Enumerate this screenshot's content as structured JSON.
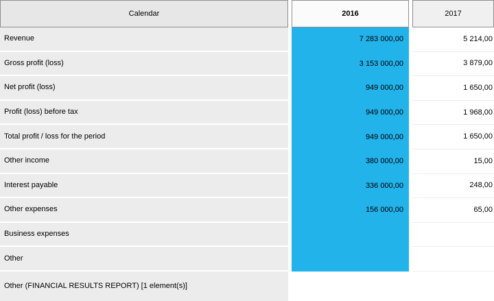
{
  "table": {
    "header": {
      "calendar": "Calendar",
      "col2016": "2016",
      "col2017": "2017"
    },
    "rows": [
      {
        "label": "Revenue",
        "v2016": "7 283 000,00",
        "v2017": "5 214,00"
      },
      {
        "label": "Gross profit (loss)",
        "v2016": "3 153 000,00",
        "v2017": "3 879,00"
      },
      {
        "label": "Net profit (loss)",
        "v2016": "949 000,00",
        "v2017": "1 650,00"
      },
      {
        "label": "Profit (loss) before tax",
        "v2016": "949 000,00",
        "v2017": "1 968,00"
      },
      {
        "label": "Total profit / loss for the period",
        "v2016": "949 000,00",
        "v2017": "1 650,00"
      },
      {
        "label": "Other income",
        "v2016": "380 000,00",
        "v2017": "15,00"
      },
      {
        "label": "Interest payable",
        "v2016": "336 000,00",
        "v2017": "248,00"
      },
      {
        "label": "Other expenses",
        "v2016": "156 000,00",
        "v2017": "65,00"
      },
      {
        "label": "Business expenses",
        "v2016": "",
        "v2017": ""
      },
      {
        "label": "Other",
        "v2016": "",
        "v2017": ""
      }
    ],
    "footer_row": {
      "label": "Other (FINANCIAL RESULTS REPORT) [1 element(s)]"
    }
  },
  "colors": {
    "highlight_column": "#23b3eb",
    "row_background": "#ececec",
    "header_background": "#e7e7e7"
  }
}
